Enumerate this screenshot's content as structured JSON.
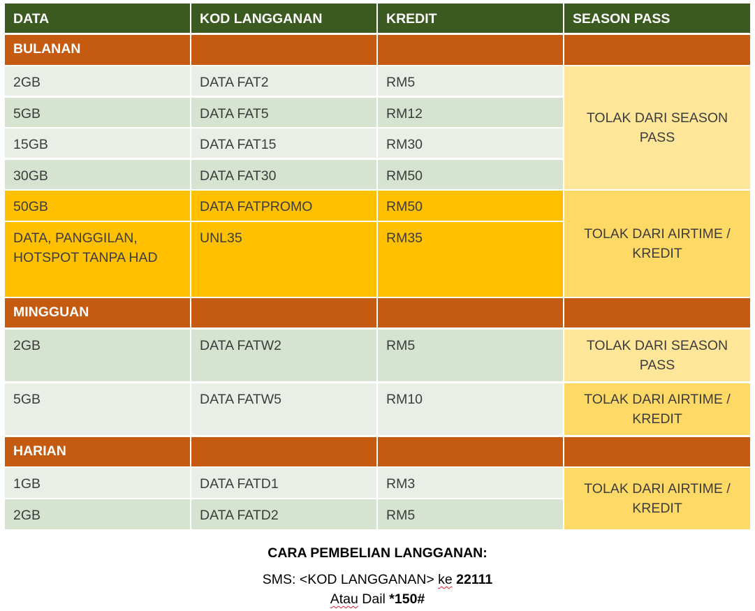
{
  "header": {
    "c1": "DATA",
    "c2": "KOD LANGGANAN",
    "c3": "KREDIT",
    "c4": "SEASON PASS"
  },
  "sections": {
    "monthly": "BULANAN",
    "weekly": "MINGGUAN",
    "daily": "HARIAN"
  },
  "monthly_rows": [
    {
      "data": "2GB",
      "code": "DATA FAT2",
      "credit": "RM5"
    },
    {
      "data": "5GB",
      "code": "DATA FAT5",
      "credit": "RM12"
    },
    {
      "data": "15GB",
      "code": "DATA FAT15",
      "credit": "RM30"
    },
    {
      "data": "30GB",
      "code": "DATA FAT30",
      "credit": "RM50"
    },
    {
      "data": "50GB",
      "code": "DATA FATPROMO",
      "credit": "RM50"
    },
    {
      "data": "DATA, PANGGILAN, HOTSPOT TANPA HAD",
      "code": "UNL35",
      "credit": "RM35"
    }
  ],
  "weekly_rows": [
    {
      "data": "2GB",
      "code": "DATA FATW2",
      "credit": "RM5"
    },
    {
      "data": "5GB",
      "code": "DATA FATW5",
      "credit": "RM10"
    }
  ],
  "daily_rows": [
    {
      "data": "1GB",
      "code": "DATA FATD1",
      "credit": "RM3"
    },
    {
      "data": "2GB",
      "code": "DATA FATD2",
      "credit": "RM5"
    }
  ],
  "season_pass": {
    "monthly_a": "TOLAK DARI SEASON PASS",
    "monthly_b": "TOLAK DARI AIRTIME / KREDIT",
    "weekly_a": "TOLAK DARI SEASON PASS",
    "weekly_b": "TOLAK DARI AIRTIME / KREDIT",
    "daily": "TOLAK DARI AIRTIME / KREDIT"
  },
  "footer": {
    "title": "CARA PEMBELIAN LANGGANAN:",
    "sms_prefix": "SMS: <KOD LANGGANAN> ",
    "sms_ke": "ke",
    "sms_number": "22111",
    "dial_atau": "Atau",
    "dial_text": " Dail ",
    "dial_code": "*150#"
  },
  "colors": {
    "header_bg": "#3a5a20",
    "section_bg": "#c55a11",
    "row_light": "#e9efe7",
    "row_dark": "#d5e3d0",
    "promo_bg": "#ffc000",
    "season_pass_bg": "#ffe699",
    "airtime_bg": "#ffd966"
  }
}
